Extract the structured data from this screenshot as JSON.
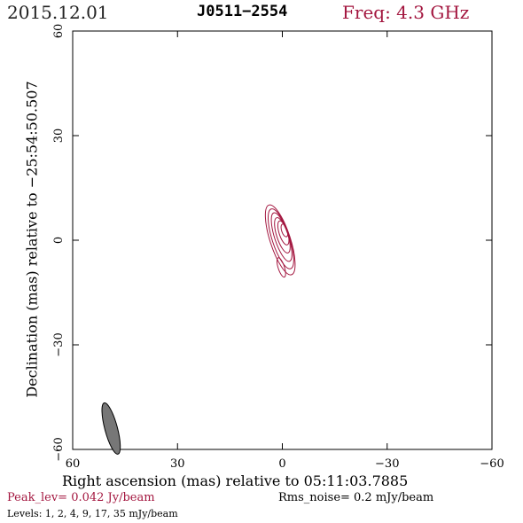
{
  "header": {
    "date": "2015.12.01",
    "source": "J0511−2554",
    "freq": "Freq: 4.3 GHz"
  },
  "footer": {
    "peak": "Peak_lev=  0.042 Jy/beam",
    "rms": "Rms_noise=  0.2 mJy/beam",
    "levels": "Levels:   1,   2,   4,   9,  17,  35 mJy/beam"
  },
  "colors": {
    "contour": "#a3163f",
    "beam": "#777777",
    "frame": "#000000"
  },
  "chart_data": {
    "type": "contour",
    "title": "J0511−2554",
    "xlabel": "Right ascension (mas) relative to 05:11:03.7885",
    "ylabel": "Declination (mas) relative to −25:54:50.507",
    "xlim": [
      60,
      -60
    ],
    "ylim": [
      -60,
      60
    ],
    "xticks": [
      60,
      30,
      0,
      -30,
      -60
    ],
    "yticks": [
      -60,
      -30,
      0,
      30,
      60
    ],
    "xtick_labels": [
      "60",
      "30",
      "0",
      "−30",
      "−60"
    ],
    "ytick_labels": [
      "−60",
      "−30",
      "0",
      "30",
      "60"
    ],
    "levels_mJy": [
      1,
      2,
      4,
      9,
      17,
      35
    ],
    "peak_Jy_per_beam": 0.042,
    "rms_mJy_per_beam": 0.2,
    "beam": {
      "x": 49,
      "y": -54,
      "major_mas": 7.6,
      "minor_mas": 1.8,
      "pa_deg": 15
    },
    "contours": [
      {
        "level": 1,
        "cx": 0.6,
        "cy": 0.1,
        "a": 10.5,
        "b": 2.9
      },
      {
        "level": 2,
        "cx": 0.4,
        "cy": 0.4,
        "a": 9.0,
        "b": 2.5
      },
      {
        "level": 4,
        "cx": 0.2,
        "cy": 0.9,
        "a": 7.3,
        "b": 2.0
      },
      {
        "level": 9,
        "cx": 0.0,
        "cy": 1.4,
        "a": 5.3,
        "b": 1.6
      },
      {
        "level": 17,
        "cx": -0.3,
        "cy": 2.1,
        "a": 3.6,
        "b": 1.2
      },
      {
        "level": 35,
        "cx": -0.6,
        "cy": 2.8,
        "a": 1.9,
        "b": 0.8
      }
    ],
    "contour_pa_deg": 18,
    "secondary_blob": {
      "level": 1,
      "cx": 0.3,
      "cy": -7.8,
      "a": 2.9,
      "b": 0.9
    }
  }
}
